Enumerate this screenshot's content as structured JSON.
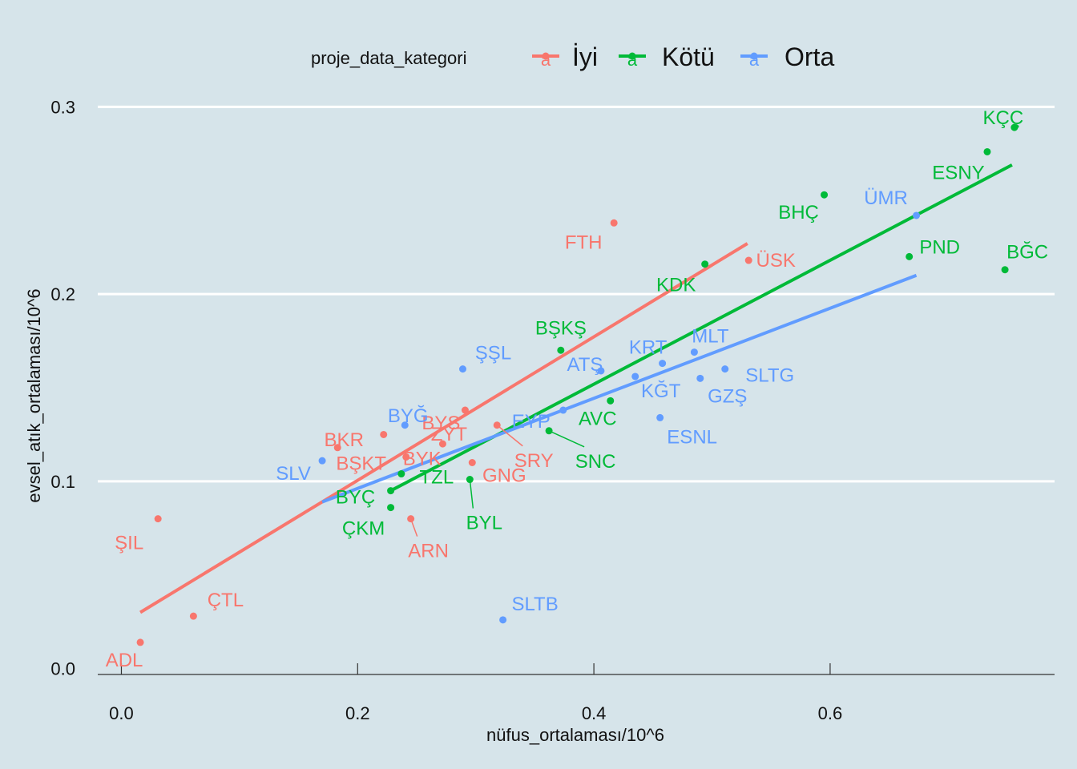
{
  "chart_data": {
    "type": "scatter",
    "xlabel": "nüfus_ortalaması/10^6",
    "ylabel": "evsel_atık_ortalaması/10^6",
    "xlim": [
      -0.02,
      0.79
    ],
    "ylim": [
      -0.01,
      0.31
    ],
    "x_ticks": [
      "0.0",
      "0.2",
      "0.4",
      "0.6"
    ],
    "x_tick_values": [
      0.0,
      0.2,
      0.4,
      0.6
    ],
    "y_ticks": [
      "0.0",
      "0.1",
      "0.2",
      "0.3"
    ],
    "y_tick_values": [
      0.0,
      0.1,
      0.2,
      0.3
    ],
    "grid": true,
    "legend_position": "top",
    "legend": {
      "title": "proje_data_kategori",
      "key_glyph": "a",
      "entries": [
        {
          "key": "İyi",
          "label": "İyi",
          "color": "#f8766d"
        },
        {
          "key": "Kötü",
          "label": "Kötü",
          "color": "#00ba38"
        },
        {
          "key": "Orta",
          "label": "Orta",
          "color": "#619cff"
        }
      ]
    },
    "series": [
      {
        "name": "İyi",
        "color": "#f8766d",
        "trend": [
          [
            0.016,
            0.03
          ],
          [
            0.53,
            0.227
          ]
        ],
        "points": [
          {
            "label": "ADL",
            "x": 0.016,
            "y": 0.014
          },
          {
            "label": "ŞIL",
            "x": 0.031,
            "y": 0.08
          },
          {
            "label": "ÇTL",
            "x": 0.061,
            "y": 0.028
          },
          {
            "label": "BKR",
            "x": 0.183,
            "y": 0.118
          },
          {
            "label": "BŞKT",
            "x": 0.222,
            "y": 0.125
          },
          {
            "label": "BYK",
            "x": 0.241,
            "y": 0.113
          },
          {
            "label": "ARN",
            "x": 0.245,
            "y": 0.08
          },
          {
            "label": "ZYT",
            "x": 0.272,
            "y": 0.12
          },
          {
            "label": "BYS",
            "x": 0.291,
            "y": 0.138
          },
          {
            "label": "GNG",
            "x": 0.297,
            "y": 0.11
          },
          {
            "label": "SRY",
            "x": 0.318,
            "y": 0.13
          },
          {
            "label": "FTH",
            "x": 0.417,
            "y": 0.238
          },
          {
            "label": "ÜSK",
            "x": 0.531,
            "y": 0.218
          }
        ]
      },
      {
        "name": "Kötü",
        "color": "#00ba38",
        "trend": [
          [
            0.228,
            0.095
          ],
          [
            0.754,
            0.269
          ]
        ],
        "points": [
          {
            "label": "BYÇ",
            "x": 0.228,
            "y": 0.095
          },
          {
            "label": "ÇKM",
            "x": 0.228,
            "y": 0.086
          },
          {
            "label": "TZL",
            "x": 0.237,
            "y": 0.104
          },
          {
            "label": "BYL",
            "x": 0.295,
            "y": 0.101
          },
          {
            "label": "SNC",
            "x": 0.362,
            "y": 0.127
          },
          {
            "label": "BŞKŞ",
            "x": 0.372,
            "y": 0.17
          },
          {
            "label": "AVC",
            "x": 0.414,
            "y": 0.143
          },
          {
            "label": "KDK",
            "x": 0.494,
            "y": 0.216
          },
          {
            "label": "BHÇ",
            "x": 0.595,
            "y": 0.253
          },
          {
            "label": "PND",
            "x": 0.667,
            "y": 0.22
          },
          {
            "label": "ESNY",
            "x": 0.733,
            "y": 0.276
          },
          {
            "label": "BĞC",
            "x": 0.748,
            "y": 0.213
          },
          {
            "label": "KÇÇ",
            "x": 0.756,
            "y": 0.289
          }
        ]
      },
      {
        "name": "Orta",
        "color": "#619cff",
        "trend": [
          [
            0.17,
            0.089
          ],
          [
            0.673,
            0.21
          ]
        ],
        "points": [
          {
            "label": "SLV",
            "x": 0.17,
            "y": 0.111
          },
          {
            "label": "BYĞ",
            "x": 0.24,
            "y": 0.13
          },
          {
            "label": "ŞŞL",
            "x": 0.289,
            "y": 0.16
          },
          {
            "label": "SLTB",
            "x": 0.323,
            "y": 0.026
          },
          {
            "label": "EYP",
            "x": 0.374,
            "y": 0.138
          },
          {
            "label": "ATŞ",
            "x": 0.406,
            "y": 0.159
          },
          {
            "label": "KĞT",
            "x": 0.435,
            "y": 0.156
          },
          {
            "label": "ESNL",
            "x": 0.456,
            "y": 0.134
          },
          {
            "label": "KRT",
            "x": 0.458,
            "y": 0.163
          },
          {
            "label": "MLT",
            "x": 0.485,
            "y": 0.169
          },
          {
            "label": "GZŞ",
            "x": 0.49,
            "y": 0.155
          },
          {
            "label": "SLTG",
            "x": 0.511,
            "y": 0.16
          },
          {
            "label": "ÜMR",
            "x": 0.673,
            "y": 0.242
          }
        ]
      }
    ]
  }
}
